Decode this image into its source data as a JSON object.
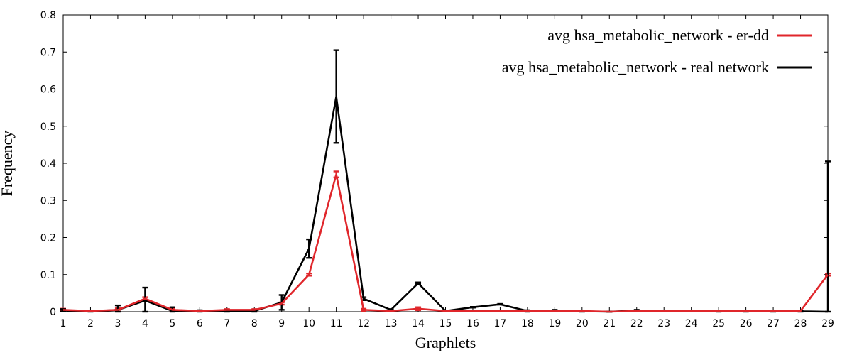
{
  "chart_data": {
    "type": "line",
    "title": "",
    "xlabel": "Graphlets",
    "ylabel": "Frequency",
    "xlim": [
      1,
      29
    ],
    "ylim": [
      0,
      0.8
    ],
    "x_ticks": [
      1,
      2,
      3,
      4,
      5,
      6,
      7,
      8,
      9,
      10,
      11,
      12,
      13,
      14,
      15,
      16,
      17,
      18,
      19,
      20,
      21,
      22,
      23,
      24,
      25,
      26,
      27,
      28,
      29
    ],
    "y_ticks": [
      0,
      0.1,
      0.2,
      0.3,
      0.4,
      0.5,
      0.6,
      0.7,
      0.8
    ],
    "y_tick_labels": [
      "0",
      "0.1",
      "0.2",
      "0.3",
      "0.4",
      "0.5",
      "0.6",
      "0.7",
      "0.8"
    ],
    "grid": false,
    "legend_position": "top-right",
    "x": [
      1,
      2,
      3,
      4,
      5,
      6,
      7,
      8,
      9,
      10,
      11,
      12,
      13,
      14,
      15,
      16,
      17,
      18,
      19,
      20,
      21,
      22,
      23,
      24,
      25,
      26,
      27,
      28,
      29
    ],
    "series": [
      {
        "name": "avg hsa_metabolic_network - er-dd",
        "color": "#e0262b",
        "values": [
          0.005,
          0.002,
          0.005,
          0.035,
          0.005,
          0.002,
          0.005,
          0.005,
          0.022,
          0.1,
          0.37,
          0.005,
          0.002,
          0.008,
          0.002,
          0.002,
          0.002,
          0.002,
          0.002,
          0.002,
          0.0,
          0.002,
          0.002,
          0.002,
          0.002,
          0.002,
          0.002,
          0.002,
          0.1
        ],
        "error": [
          0.003,
          0.001,
          0.004,
          0.004,
          0.004,
          0.001,
          0.002,
          0.002,
          0.003,
          0.003,
          0.008,
          0.003,
          0.001,
          0.004,
          0.001,
          0.001,
          0.001,
          0.001,
          0.001,
          0.001,
          0.0,
          0.001,
          0.001,
          0.001,
          0.001,
          0.001,
          0.001,
          0.001,
          0.003
        ]
      },
      {
        "name": "avg hsa_metabolic_network - real network",
        "color": "#000000",
        "values": [
          0.004,
          0.001,
          0.005,
          0.03,
          0.002,
          0.002,
          0.002,
          0.002,
          0.025,
          0.17,
          0.58,
          0.035,
          0.005,
          0.077,
          0.002,
          0.012,
          0.02,
          0.002,
          0.003,
          0.001,
          0.0,
          0.003,
          0.002,
          0.002,
          0.001,
          0.001,
          0.001,
          0.001,
          0.0
        ],
        "error": [
          0.003,
          0.001,
          0.012,
          0.035,
          0.01,
          0.002,
          0.003,
          0.003,
          0.02,
          0.025,
          0.125,
          0.004,
          0.002,
          0.002,
          0.001,
          0.001,
          0.001,
          0.002,
          0.002,
          0.001,
          0.0,
          0.002,
          0.001,
          0.001,
          0.001,
          0.001,
          0.001,
          0.001,
          0.405
        ]
      }
    ]
  }
}
